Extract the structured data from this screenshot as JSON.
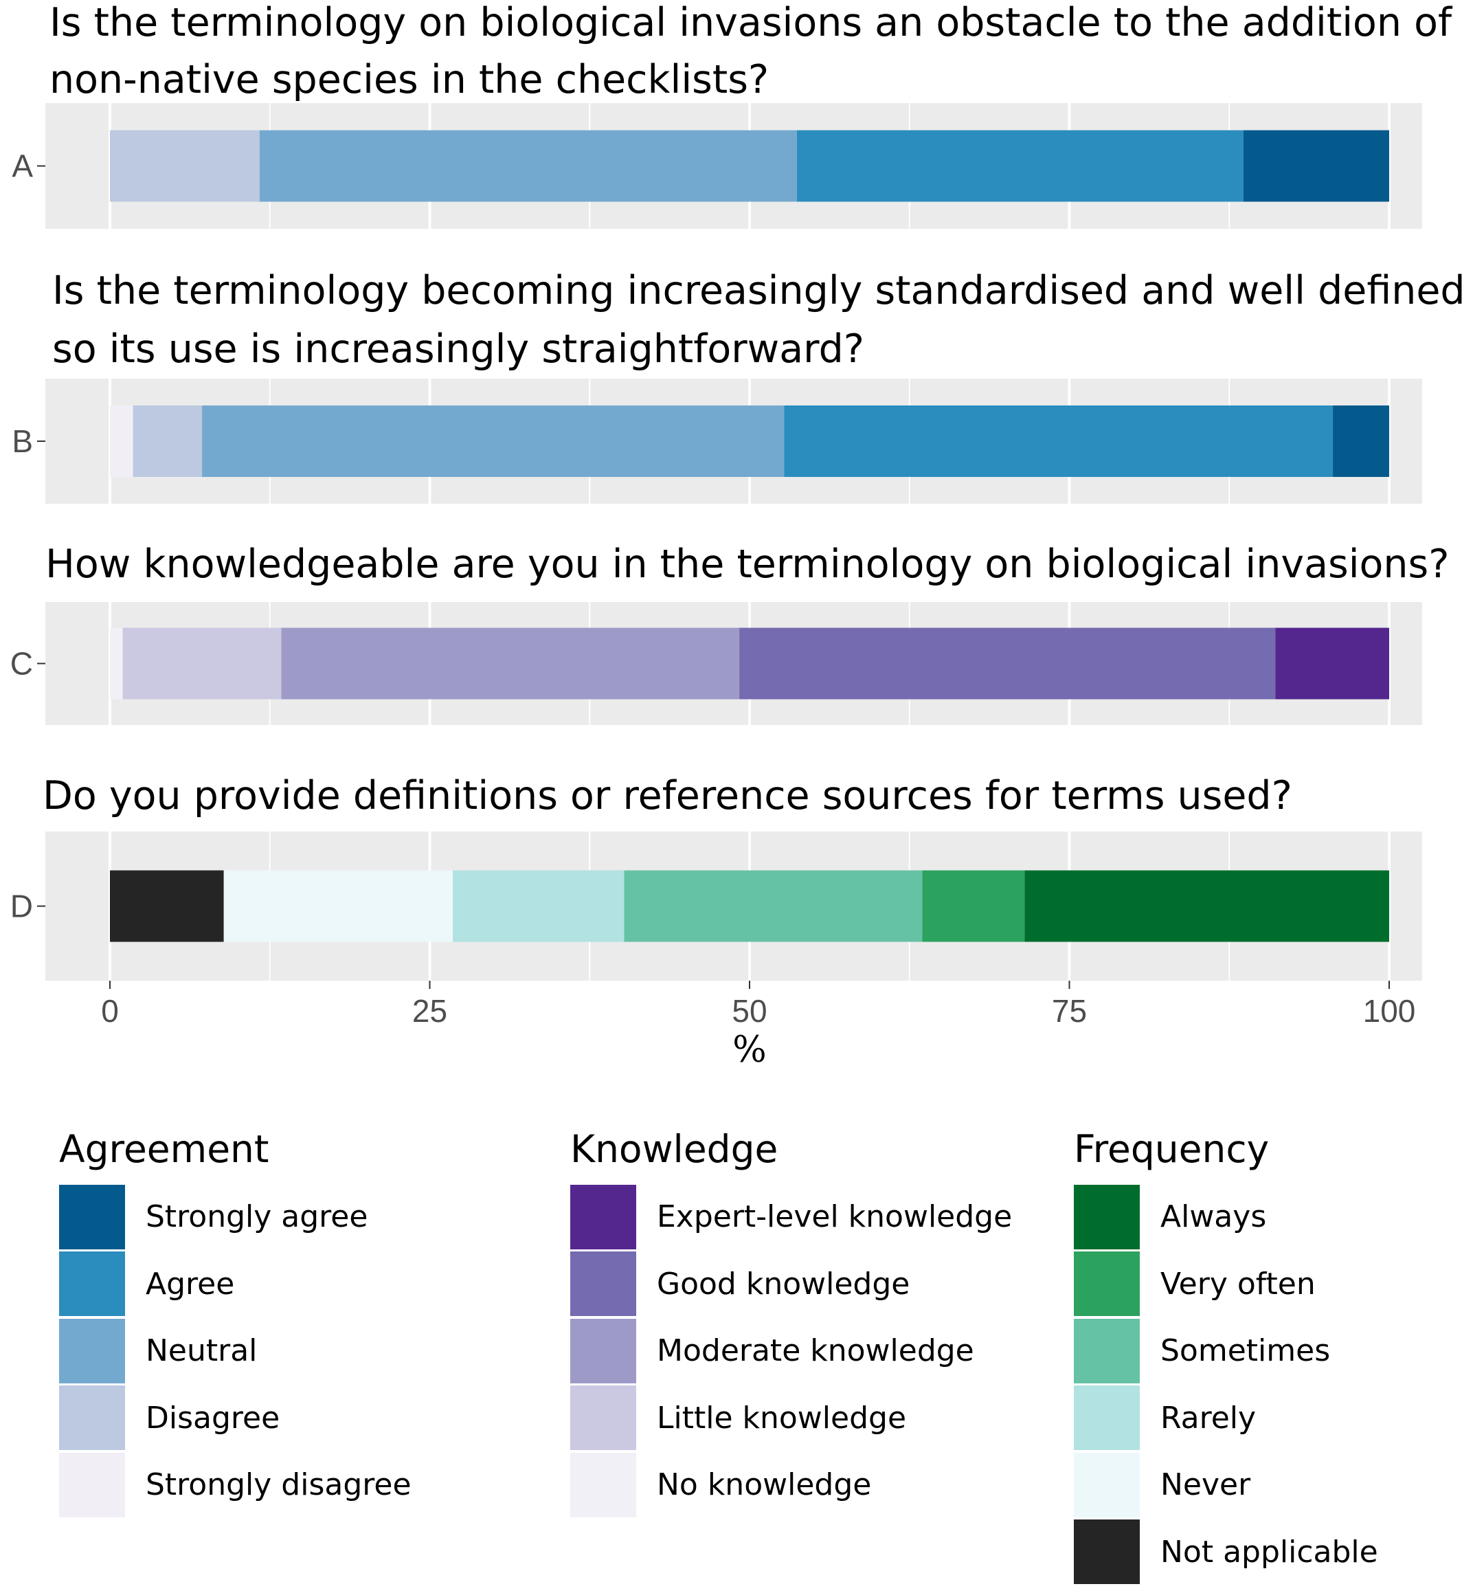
{
  "chart_data": {
    "type": "bar",
    "orientation": "horizontal",
    "stacked": true,
    "xlabel": "%",
    "xlim": [
      0,
      100
    ],
    "xticks": [
      0,
      25,
      50,
      75,
      100
    ],
    "grid": true,
    "rows": [
      {
        "id": "A",
        "title_lines": [
          "Is the terminology on biological invasions an obstacle to the addition of",
          "non-native species in the checklists?"
        ],
        "scale": "agreement",
        "segments": [
          {
            "category": "Disagree",
            "value": 11.7
          },
          {
            "category": "Neutral",
            "value": 42.0
          },
          {
            "category": "Agree",
            "value": 34.9
          },
          {
            "category": "Strongly agree",
            "value": 11.4
          }
        ]
      },
      {
        "id": "B",
        "title_lines": [
          "Is the terminology becoming increasingly standardised and well defined,",
          "so its use is increasingly straightforward?"
        ],
        "scale": "agreement",
        "segments": [
          {
            "category": "Strongly disagree",
            "value": 1.8
          },
          {
            "category": "Disagree",
            "value": 5.4
          },
          {
            "category": "Neutral",
            "value": 45.5
          },
          {
            "category": "Agree",
            "value": 42.9
          },
          {
            "category": "Strongly agree",
            "value": 4.4
          }
        ]
      },
      {
        "id": "C",
        "title_lines": [
          "How knowledgeable are you in the terminology on biological invasions?"
        ],
        "scale": "knowledge",
        "segments": [
          {
            "category": "No knowledge",
            "value": 1.0
          },
          {
            "category": "Little knowledge",
            "value": 12.4
          },
          {
            "category": "Moderate knowledge",
            "value": 35.8
          },
          {
            "category": "Good knowledge",
            "value": 41.9
          },
          {
            "category": "Expert-level knowledge",
            "value": 8.9
          }
        ]
      },
      {
        "id": "D",
        "title_lines": [
          "Do you provide definitions or reference sources for terms used?"
        ],
        "scale": "frequency",
        "segments": [
          {
            "category": "Not applicable",
            "value": 8.9
          },
          {
            "category": "Never",
            "value": 17.9
          },
          {
            "category": "Rarely",
            "value": 13.4
          },
          {
            "category": "Sometimes",
            "value": 23.3
          },
          {
            "category": "Very often",
            "value": 8.0
          },
          {
            "category": "Always",
            "value": 28.5
          }
        ]
      }
    ],
    "legends": [
      {
        "id": "agreement",
        "title": "Agreement",
        "items": [
          {
            "label": "Strongly agree",
            "color": "#045a8d"
          },
          {
            "label": "Agree",
            "color": "#2b8cbe"
          },
          {
            "label": "Neutral",
            "color": "#74a9cf"
          },
          {
            "label": "Disagree",
            "color": "#bdc9e1"
          },
          {
            "label": "Strongly disagree",
            "color": "#f1eef6"
          }
        ]
      },
      {
        "id": "knowledge",
        "title": "Knowledge",
        "items": [
          {
            "label": "Expert-level knowledge",
            "color": "#54278f"
          },
          {
            "label": "Good knowledge",
            "color": "#756bb1"
          },
          {
            "label": "Moderate knowledge",
            "color": "#9e9ac8"
          },
          {
            "label": "Little knowledge",
            "color": "#cbc9e2"
          },
          {
            "label": "No knowledge",
            "color": "#f2f0f7"
          }
        ]
      },
      {
        "id": "frequency",
        "title": "Frequency",
        "items": [
          {
            "label": "Always",
            "color": "#006d2c"
          },
          {
            "label": "Very often",
            "color": "#2ca25f"
          },
          {
            "label": "Sometimes",
            "color": "#66c2a4"
          },
          {
            "label": "Rarely",
            "color": "#b2e2e2"
          },
          {
            "label": "Never",
            "color": "#edf8fb"
          },
          {
            "label": "Not applicable",
            "color": "#252525"
          }
        ]
      }
    ]
  }
}
